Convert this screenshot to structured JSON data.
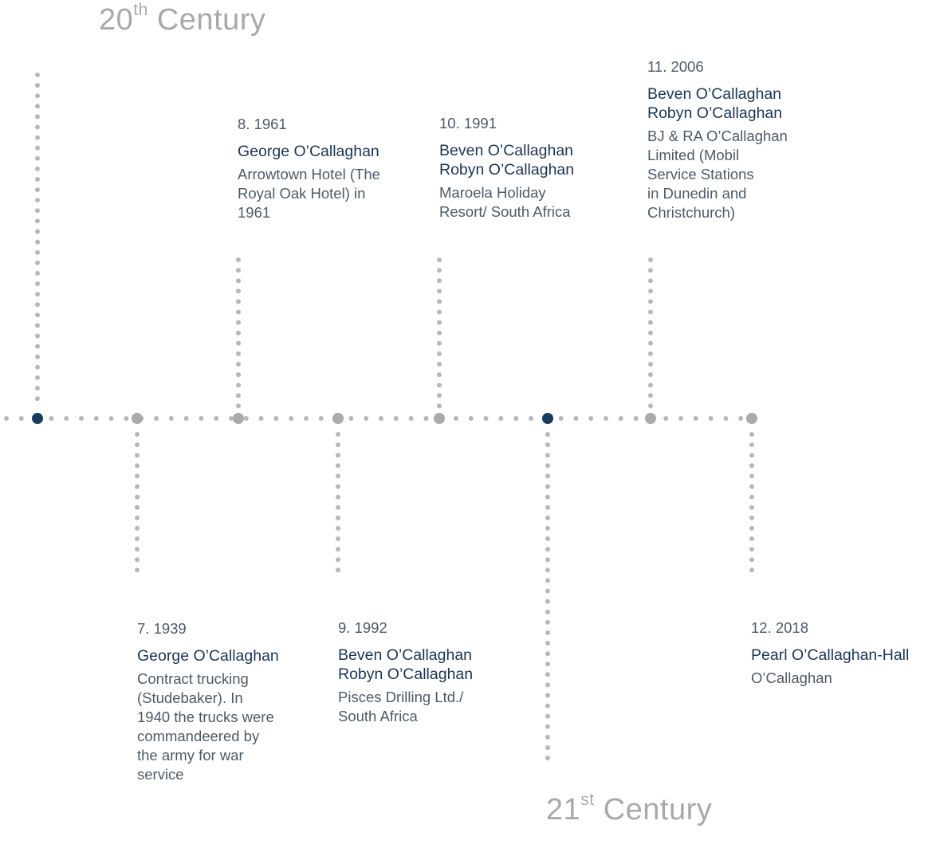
{
  "colors": {
    "dot": "#b7b8ba",
    "node": "#a9aaac",
    "marker": "#173c5e",
    "heading": "#a9a9a9",
    "name": "#1c3553",
    "text": "#4d5a67"
  },
  "centuries": {
    "c20": {
      "number": "20",
      "suffix": "th",
      "word": "Century"
    },
    "c21": {
      "number": "21",
      "suffix": "st",
      "word": "Century"
    }
  },
  "entries": {
    "e7": {
      "num": "7. 1939",
      "names": [
        "George O’Callaghan"
      ],
      "desc": [
        "Contract trucking",
        "(Studebaker). In",
        "1940 the trucks were",
        "commandeered by",
        "the army for war",
        "service"
      ]
    },
    "e8": {
      "num": "8. 1961",
      "names": [
        "George O’Callaghan"
      ],
      "desc": [
        "Arrowtown Hotel (The",
        "Royal Oak Hotel) in",
        "1961"
      ]
    },
    "e9": {
      "num": "9. 1992",
      "names": [
        "Beven O’Callaghan",
        "Robyn O’Callaghan"
      ],
      "desc": [
        "Pisces Drilling Ltd./",
        "South Africa"
      ]
    },
    "e10": {
      "num": "10. 1991",
      "names": [
        "Beven O’Callaghan",
        "Robyn O’Callaghan"
      ],
      "desc": [
        "Maroela Holiday",
        "Resort/ South Africa"
      ]
    },
    "e11": {
      "num": "11. 2006",
      "names": [
        "Beven O’Callaghan",
        "Robyn O’Callaghan"
      ],
      "desc": [
        "BJ & RA O’Callaghan",
        "Limited (Mobil",
        "Service Stations",
        "in Dunedin and",
        "Christchurch)"
      ]
    },
    "e12": {
      "num": "12. 2018",
      "names": [
        "Pearl O’Callaghan-Hall"
      ],
      "desc": [
        "O’Callaghan"
      ]
    }
  }
}
